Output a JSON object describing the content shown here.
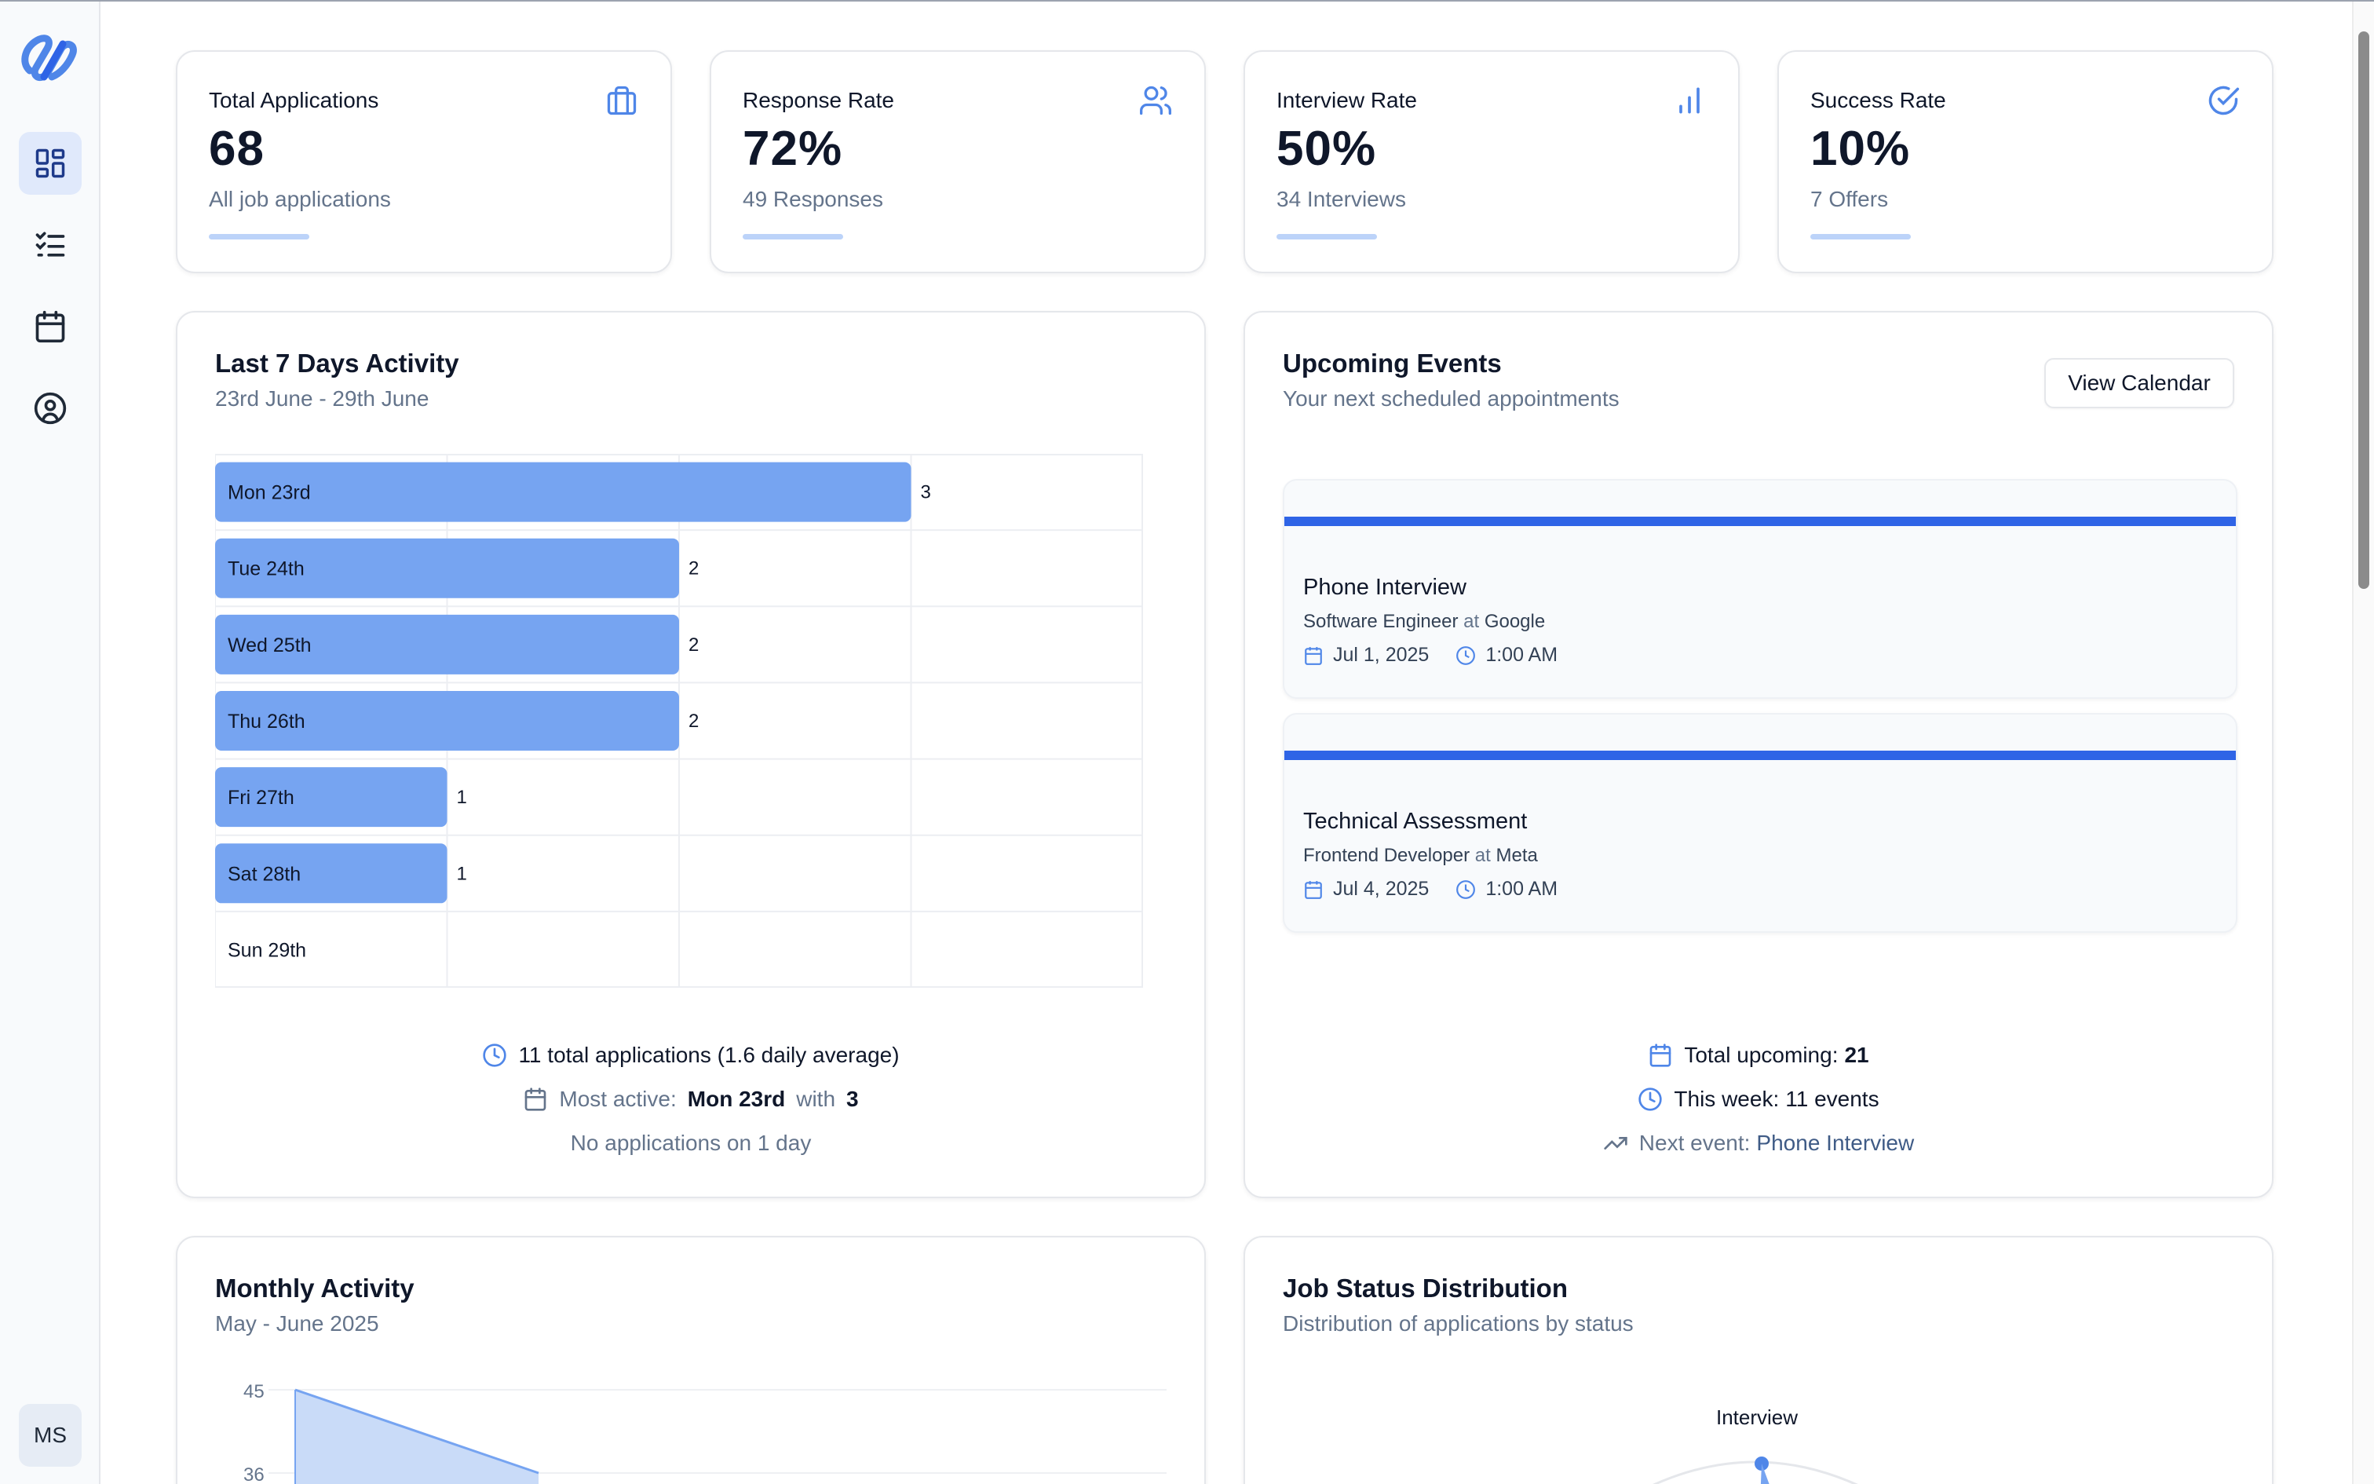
{
  "sidebar": {
    "nav": [
      "dashboard",
      "job-list",
      "calendar",
      "profile"
    ],
    "user_initials": "MS"
  },
  "stats": [
    {
      "title": "Total Applications",
      "value": "68",
      "sub": "All job applications",
      "icon": "briefcase-icon"
    },
    {
      "title": "Response Rate",
      "value": "72%",
      "sub": "49 Responses",
      "icon": "users-icon"
    },
    {
      "title": "Interview Rate",
      "value": "50%",
      "sub": "34 Interviews",
      "icon": "bar-chart-icon"
    },
    {
      "title": "Success Rate",
      "value": "10%",
      "sub": "7 Offers",
      "icon": "check-circle-icon"
    }
  ],
  "activity": {
    "title": "Last 7 Days Activity",
    "subtitle": "23rd June - 29th June",
    "summary_total": "11 total applications (1.6 daily average)",
    "most_active_label": "Most active:",
    "most_active_day": "Mon 23rd",
    "with_label": "with",
    "most_active_count": "3",
    "no_apps": "No applications on 1 day"
  },
  "chart_data": {
    "type": "bar",
    "orientation": "horizontal",
    "categories": [
      "Mon 23rd",
      "Tue 24th",
      "Wed 25th",
      "Thu 26th",
      "Fri 27th",
      "Sat 28th",
      "Sun 29th"
    ],
    "values": [
      3,
      2,
      2,
      2,
      1,
      1,
      0
    ],
    "xlim": [
      0,
      4
    ],
    "grid": true,
    "bar_color": "#76a4f1"
  },
  "events": {
    "title": "Upcoming Events",
    "subtitle": "Your next scheduled appointments",
    "view_calendar": "View Calendar",
    "items": [
      {
        "title": "Phone Interview",
        "role": "Software Engineer",
        "at": "at",
        "company": "Google",
        "date": "Jul 1, 2025",
        "time": "1:00 AM"
      },
      {
        "title": "Technical Assessment",
        "role": "Frontend Developer",
        "at": "at",
        "company": "Meta",
        "date": "Jul 4, 2025",
        "time": "1:00 AM"
      }
    ],
    "total_label": "Total upcoming:",
    "total_value": "21",
    "week_label": "This week:",
    "week_value": "11 events",
    "next_label": "Next event:",
    "next_value": "Phone Interview"
  },
  "monthly": {
    "title": "Monthly Activity",
    "subtitle": "May - June 2025",
    "y_ticks": [
      "45",
      "36"
    ]
  },
  "distribution": {
    "title": "Job Status Distribution",
    "subtitle": "Distribution of applications by status",
    "visible_label": "Interview"
  },
  "colors": {
    "accent": "#2f64e6",
    "bar": "#76a4f1",
    "icon_blue": "#4f86e8"
  }
}
